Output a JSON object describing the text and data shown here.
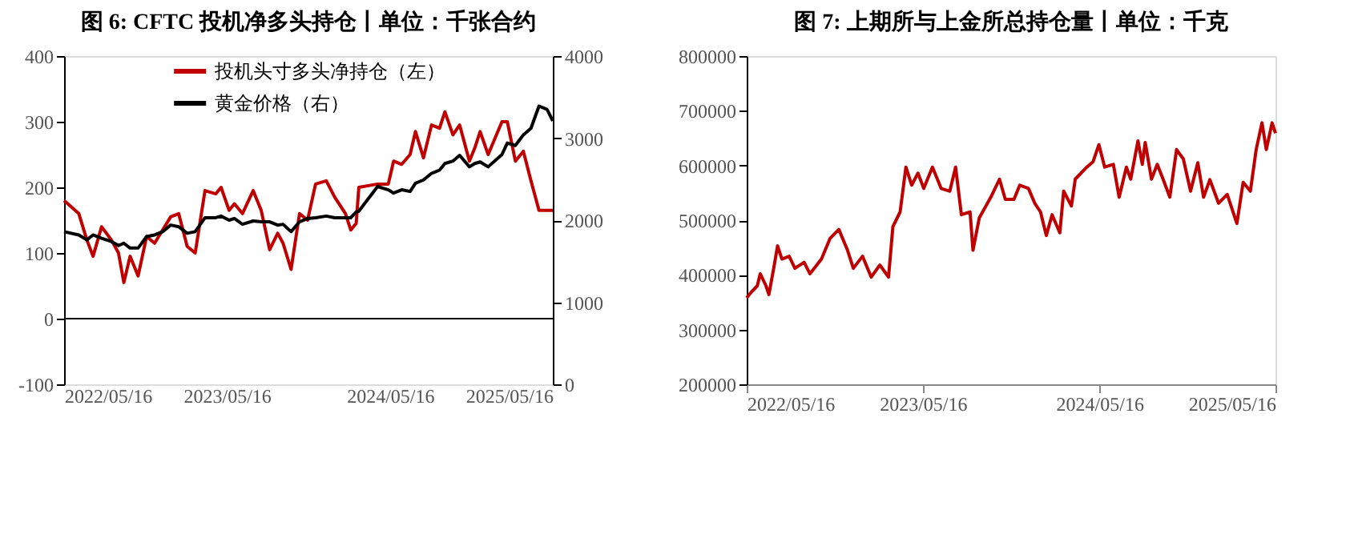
{
  "chart_data": [
    {
      "type": "line",
      "title": "图 6: CFTC 投机净多头持仓丨单位：千张合约",
      "xlim": [
        "2022-05-16",
        "2025-05-16"
      ],
      "xticks": [
        {
          "value": "2022-05-16",
          "label": "2022/05/16"
        },
        {
          "value": "2023-05-16",
          "label": "2023/05/16"
        },
        {
          "value": "2024-05-16",
          "label": "2024/05/16"
        },
        {
          "value": "2025-05-16",
          "label": "2025/05/16"
        }
      ],
      "ylim": [
        -100,
        400
      ],
      "yticks": [
        -100,
        0,
        100,
        200,
        300,
        400
      ],
      "y2lim": [
        0,
        4000
      ],
      "y2ticks": [
        0,
        1000,
        2000,
        3000,
        4000
      ],
      "grid": false,
      "legend": "top",
      "marker": "none",
      "line_style": "solid",
      "ref_lines": [
        {
          "axis": "y",
          "value": 0,
          "color": "#000000"
        }
      ],
      "x": [
        "2022-05-16",
        "2022-06-18",
        "2022-07-06",
        "2022-07-20",
        "2022-08-08",
        "2022-08-30",
        "2022-09-15",
        "2022-09-27",
        "2022-10-11",
        "2022-10-29",
        "2022-11-17",
        "2022-12-05",
        "2022-12-23",
        "2023-01-10",
        "2023-01-28",
        "2023-02-16",
        "2023-03-06",
        "2023-03-28",
        "2023-04-21",
        "2023-05-03",
        "2023-05-21",
        "2023-06-02",
        "2023-06-20",
        "2023-07-14",
        "2023-08-01",
        "2023-08-20",
        "2023-09-07",
        "2023-09-19",
        "2023-10-07",
        "2023-10-26",
        "2023-11-13",
        "2023-12-01",
        "2023-12-25",
        "2024-01-13",
        "2024-02-06",
        "2024-02-18",
        "2024-03-01",
        "2024-03-07",
        "2024-04-18",
        "2024-05-12",
        "2024-05-24",
        "2024-06-11",
        "2024-06-30",
        "2024-07-12",
        "2024-07-30",
        "2024-08-17",
        "2024-09-04",
        "2024-09-16",
        "2024-10-04",
        "2024-10-19",
        "2024-11-10",
        "2024-11-22",
        "2024-12-04",
        "2024-12-22",
        "2025-01-22",
        "2025-02-03",
        "2025-02-21",
        "2025-03-11",
        "2025-03-28",
        "2025-04-15",
        "2025-05-03",
        "2025-05-16"
      ],
      "series": [
        {
          "name": "投机头寸多头净持仓（左）",
          "color": "#c00000",
          "values": [
            180,
            160,
            120,
            95,
            140,
            120,
            100,
            55,
            95,
            65,
            125,
            115,
            135,
            155,
            160,
            110,
            100,
            195,
            190,
            200,
            165,
            175,
            160,
            195,
            165,
            105,
            130,
            115,
            75,
            160,
            150,
            205,
            210,
            185,
            160,
            135,
            145,
            200,
            205,
            205,
            240,
            235,
            250,
            285,
            245,
            295,
            290,
            315,
            280,
            295,
            240,
            260,
            285,
            250,
            300,
            300,
            240,
            255,
            210,
            165,
            165,
            165
          ]
        },
        {
          "name": "黄金价格（右）",
          "color": "#000000",
          "axis": "y2",
          "values": [
            1860,
            1820,
            1760,
            1820,
            1780,
            1740,
            1690,
            1720,
            1660,
            1660,
            1800,
            1820,
            1860,
            1940,
            1920,
            1840,
            1860,
            2030,
            2030,
            2050,
            2000,
            2020,
            1950,
            1990,
            1980,
            1980,
            1940,
            1950,
            1860,
            1980,
            2020,
            2030,
            2050,
            2030,
            2030,
            2030,
            2100,
            2110,
            2410,
            2370,
            2330,
            2370,
            2350,
            2450,
            2490,
            2570,
            2610,
            2690,
            2720,
            2790,
            2650,
            2690,
            2710,
            2650,
            2800,
            2940,
            2910,
            3040,
            3120,
            3390,
            3350,
            3210
          ]
        }
      ]
    },
    {
      "type": "line",
      "title": "图 7: 上期所与上金所总持仓量丨单位：千克",
      "xlim": [
        "2022-05-16",
        "2025-05-16"
      ],
      "xticks": [
        {
          "value": "2022-05-16",
          "label": "2022/05/16"
        },
        {
          "value": "2023-05-16",
          "label": "2023/05/16"
        },
        {
          "value": "2024-05-16",
          "label": "2024/05/16"
        },
        {
          "value": "2025-05-16",
          "label": "2025/05/16"
        }
      ],
      "ylim": [
        200000,
        800000
      ],
      "yticks": [
        200000,
        300000,
        400000,
        500000,
        600000,
        700000,
        800000
      ],
      "grid": false,
      "marker": "none",
      "line_style": "solid",
      "x": [
        "2022-05-16",
        "2022-05-26",
        "2022-06-07",
        "2022-06-13",
        "2022-06-25",
        "2022-07-01",
        "2022-07-11",
        "2022-07-19",
        "2022-07-28",
        "2022-08-12",
        "2022-08-24",
        "2022-09-12",
        "2022-09-24",
        "2022-10-18",
        "2022-11-05",
        "2022-11-23",
        "2022-12-11",
        "2022-12-23",
        "2023-01-11",
        "2023-01-29",
        "2023-02-16",
        "2023-03-06",
        "2023-03-15",
        "2023-03-30",
        "2023-04-11",
        "2023-04-23",
        "2023-05-06",
        "2023-05-18",
        "2023-06-05",
        "2023-06-23",
        "2023-07-11",
        "2023-07-23",
        "2023-08-04",
        "2023-08-22",
        "2023-08-28",
        "2023-09-10",
        "2023-10-04",
        "2023-10-22",
        "2023-11-03",
        "2023-11-21",
        "2023-12-03",
        "2023-12-21",
        "2024-01-03",
        "2024-01-15",
        "2024-01-27",
        "2024-02-08",
        "2024-02-24",
        "2024-03-03",
        "2024-03-19",
        "2024-03-27",
        "2024-04-20",
        "2024-05-03",
        "2024-05-15",
        "2024-05-27",
        "2024-06-14",
        "2024-06-26",
        "2024-07-11",
        "2024-07-20",
        "2024-08-04",
        "2024-08-13",
        "2024-08-19",
        "2024-09-01",
        "2024-09-13",
        "2024-09-25",
        "2024-10-09",
        "2024-10-23",
        "2024-11-06",
        "2024-11-21",
        "2024-12-06",
        "2024-12-18",
        "2024-12-31",
        "2025-01-18",
        "2025-02-05",
        "2025-02-25",
        "2025-03-10",
        "2025-03-25",
        "2025-04-06",
        "2025-04-18",
        "2025-04-27",
        "2025-05-09",
        "2025-05-16"
      ],
      "series": [
        {
          "color": "#c00000",
          "values": [
            358000,
            369000,
            380000,
            402000,
            380000,
            364000,
            412000,
            453000,
            429000,
            434000,
            412000,
            423000,
            402000,
            429000,
            467000,
            483000,
            445000,
            412000,
            434000,
            396000,
            418000,
            396000,
            488000,
            515000,
            597000,
            564000,
            586000,
            558000,
            597000,
            558000,
            553000,
            597000,
            510000,
            515000,
            445000,
            504000,
            542000,
            575000,
            538000,
            538000,
            564000,
            558000,
            531000,
            515000,
            472000,
            510000,
            477000,
            553000,
            526000,
            575000,
            597000,
            607000,
            638000,
            597000,
            602000,
            542000,
            597000,
            575000,
            645000,
            602000,
            642000,
            575000,
            602000,
            575000,
            542000,
            629000,
            612000,
            553000,
            605000,
            542000,
            574000,
            531000,
            547000,
            494000,
            569000,
            553000,
            629000,
            678000,
            629000,
            678000,
            659000
          ]
        }
      ]
    }
  ]
}
